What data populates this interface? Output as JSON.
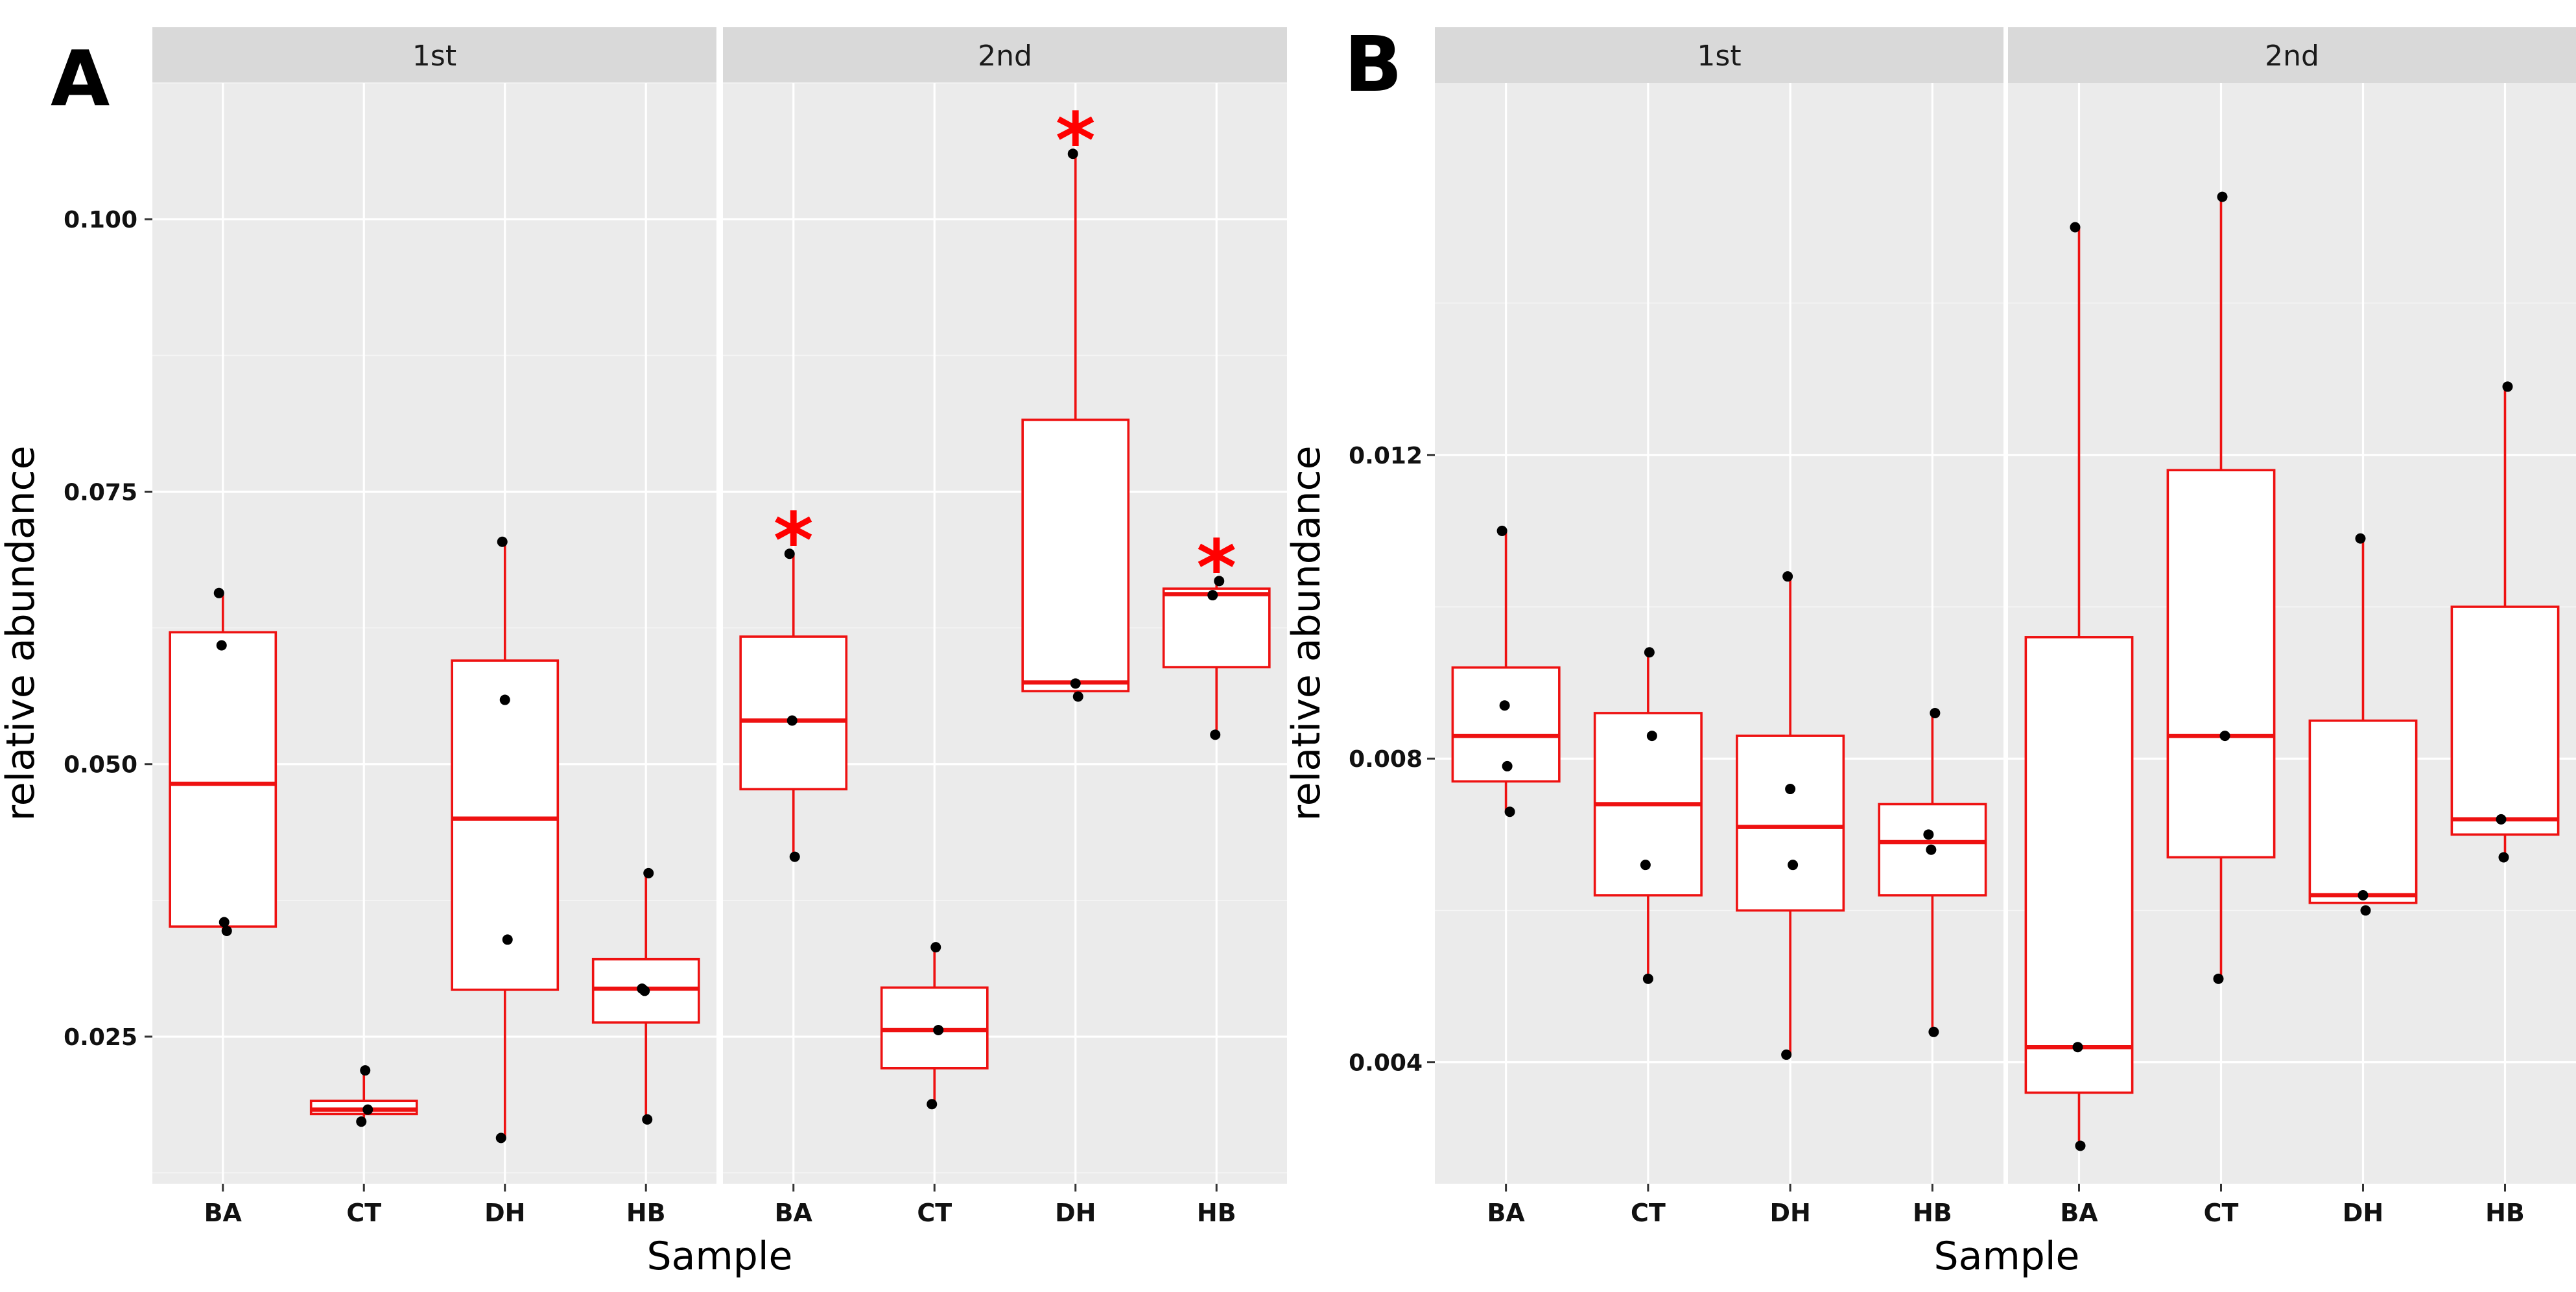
{
  "chart_data": [
    {
      "type": "box",
      "panel_label": "A",
      "xlabel": "Sample",
      "ylabel": "relative abundance",
      "ylim": [
        0.0115,
        0.1125
      ],
      "yticks": [
        0.025,
        0.05,
        0.075,
        0.1
      ],
      "ytick_labels": [
        "0.025",
        "0.050",
        "0.075",
        "0.100"
      ],
      "categories": [
        "BA",
        "CT",
        "DH",
        "HB"
      ],
      "colors": {
        "box_line": "#ee1111",
        "box_fill": "#ffffff",
        "point": "#000000",
        "star": "#ff0000",
        "panel_bg": "#ebebeb",
        "strip_bg": "#d9d9d9"
      },
      "facets": [
        {
          "strip": "1st",
          "boxes": [
            {
              "category": "BA",
              "lower_whisker": 0.0347,
              "q1": 0.0351,
              "median": 0.0482,
              "q3": 0.0621,
              "upper_whisker": 0.0657,
              "points": [
                0.0657,
                0.0609,
                0.0355,
                0.0347
              ],
              "significant": false
            },
            {
              "category": "CT",
              "lower_whisker": 0.0172,
              "q1": 0.0179,
              "median": 0.0183,
              "q3": 0.0191,
              "upper_whisker": 0.0219,
              "points": [
                0.0219,
                0.0183,
                0.0172
              ],
              "significant": false
            },
            {
              "category": "DH",
              "lower_whisker": 0.0157,
              "q1": 0.0293,
              "median": 0.045,
              "q3": 0.0595,
              "upper_whisker": 0.0704,
              "points": [
                0.0704,
                0.0559,
                0.0339,
                0.0157
              ],
              "significant": false
            },
            {
              "category": "HB",
              "lower_whisker": 0.0174,
              "q1": 0.0263,
              "median": 0.0294,
              "q3": 0.0321,
              "upper_whisker": 0.04,
              "points": [
                0.04,
                0.0294,
                0.0292,
                0.0174
              ],
              "significant": false
            }
          ]
        },
        {
          "strip": "2nd",
          "boxes": [
            {
              "category": "BA",
              "lower_whisker": 0.0415,
              "q1": 0.0477,
              "median": 0.054,
              "q3": 0.0617,
              "upper_whisker": 0.0693,
              "points": [
                0.0693,
                0.054,
                0.0415
              ],
              "significant": true,
              "star": "*"
            },
            {
              "category": "CT",
              "lower_whisker": 0.0188,
              "q1": 0.0221,
              "median": 0.0256,
              "q3": 0.0295,
              "upper_whisker": 0.0332,
              "points": [
                0.0332,
                0.0256,
                0.0188
              ],
              "significant": false
            },
            {
              "category": "DH",
              "lower_whisker": 0.0562,
              "q1": 0.0567,
              "median": 0.0575,
              "q3": 0.0816,
              "upper_whisker": 0.106,
              "points": [
                0.106,
                0.0574,
                0.0562
              ],
              "significant": true,
              "star": "*"
            },
            {
              "category": "HB",
              "lower_whisker": 0.0527,
              "q1": 0.0589,
              "median": 0.0656,
              "q3": 0.0661,
              "upper_whisker": 0.0668,
              "points": [
                0.0668,
                0.0655,
                0.0527
              ],
              "significant": true,
              "star": "*"
            }
          ]
        }
      ]
    },
    {
      "type": "box",
      "panel_label": "B",
      "xlabel": "Sample",
      "ylabel": "relative abundance",
      "ylim": [
        0.0024,
        0.0169
      ],
      "yticks": [
        0.004,
        0.008,
        0.012
      ],
      "ytick_labels": [
        "0.004",
        "0.008",
        "0.012"
      ],
      "categories": [
        "BA",
        "CT",
        "DH",
        "HB"
      ],
      "colors": {
        "box_line": "#ee1111",
        "box_fill": "#ffffff",
        "point": "#000000",
        "panel_bg": "#ebebeb",
        "strip_bg": "#d9d9d9"
      },
      "facets": [
        {
          "strip": "1st",
          "boxes": [
            {
              "category": "BA",
              "lower_whisker": 0.0073,
              "q1": 0.0077,
              "median": 0.0083,
              "q3": 0.0092,
              "upper_whisker": 0.011,
              "points": [
                0.011,
                0.0087,
                0.0079,
                0.0073
              ],
              "significant": false
            },
            {
              "category": "CT",
              "lower_whisker": 0.0051,
              "q1": 0.0062,
              "median": 0.0074,
              "q3": 0.0086,
              "upper_whisker": 0.0094,
              "points": [
                0.0094,
                0.0083,
                0.0066,
                0.0051
              ],
              "significant": false
            },
            {
              "category": "DH",
              "lower_whisker": 0.0041,
              "q1": 0.006,
              "median": 0.0071,
              "q3": 0.0083,
              "upper_whisker": 0.0104,
              "points": [
                0.0104,
                0.0076,
                0.0066,
                0.0041
              ],
              "significant": false
            },
            {
              "category": "HB",
              "lower_whisker": 0.0044,
              "q1": 0.0062,
              "median": 0.0069,
              "q3": 0.0074,
              "upper_whisker": 0.0086,
              "points": [
                0.0086,
                0.007,
                0.0068,
                0.0044
              ],
              "significant": false
            }
          ]
        },
        {
          "strip": "2nd",
          "boxes": [
            {
              "category": "BA",
              "lower_whisker": 0.0029,
              "q1": 0.0036,
              "median": 0.0042,
              "q3": 0.0096,
              "upper_whisker": 0.015,
              "points": [
                0.015,
                0.0042,
                0.0029
              ],
              "significant": false
            },
            {
              "category": "CT",
              "lower_whisker": 0.0051,
              "q1": 0.0067,
              "median": 0.0083,
              "q3": 0.0118,
              "upper_whisker": 0.0154,
              "points": [
                0.0154,
                0.0083,
                0.0051
              ],
              "significant": false
            },
            {
              "category": "DH",
              "lower_whisker": 0.0061,
              "q1": 0.0061,
              "median": 0.0062,
              "q3": 0.0085,
              "upper_whisker": 0.0109,
              "points": [
                0.0109,
                0.0062,
                0.006
              ],
              "significant": false
            },
            {
              "category": "HB",
              "lower_whisker": 0.0067,
              "q1": 0.007,
              "median": 0.0072,
              "q3": 0.01,
              "upper_whisker": 0.0129,
              "points": [
                0.0129,
                0.0072,
                0.0067
              ],
              "significant": false
            }
          ]
        }
      ]
    }
  ]
}
